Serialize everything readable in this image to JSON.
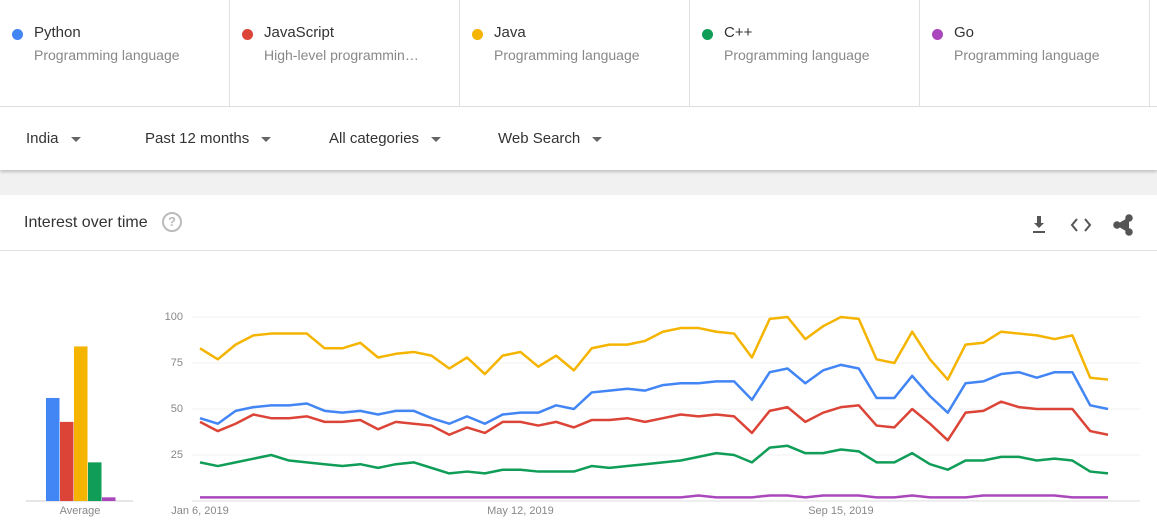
{
  "terms_panel": {
    "filters": [
      "India",
      "Past 12 months",
      "All categories",
      "Web Search"
    ]
  },
  "card": {
    "title": "Interest over time"
  },
  "chart_data": {
    "type": "line",
    "categories": [
      "Jan 6, 2019",
      null,
      null,
      null,
      null,
      null,
      null,
      null,
      null,
      null,
      null,
      null,
      null,
      null,
      null,
      null,
      null,
      null,
      "May 12, 2019",
      null,
      null,
      null,
      null,
      null,
      null,
      null,
      null,
      null,
      null,
      null,
      null,
      null,
      null,
      null,
      null,
      null,
      "Sep 15, 2019",
      null,
      null,
      null,
      null,
      null,
      null,
      null,
      null,
      null,
      null,
      null,
      null,
      null,
      null,
      null
    ],
    "average_label": "Average",
    "ylim": [
      0,
      100
    ],
    "yticks": [
      25,
      50,
      75,
      100
    ],
    "grid": true,
    "series": [
      {
        "name": "Python",
        "subtitle": "Programming language",
        "color": "#4285f4",
        "average": 56,
        "values": [
          45,
          42,
          49,
          51,
          52,
          52,
          53,
          49,
          48,
          49,
          47,
          49,
          49,
          45,
          42,
          46,
          42,
          47,
          48,
          48,
          52,
          50,
          59,
          60,
          61,
          60,
          63,
          64,
          64,
          65,
          65,
          55,
          70,
          72,
          64,
          71,
          74,
          72,
          56,
          56,
          68,
          57,
          48,
          64,
          65,
          69,
          70,
          67,
          70,
          70,
          52,
          50
        ]
      },
      {
        "name": "JavaScript",
        "subtitle": "High-level programmin…",
        "color": "#db4437",
        "average": 43,
        "values": [
          43,
          38,
          42,
          47,
          45,
          45,
          46,
          43,
          43,
          44,
          39,
          43,
          42,
          41,
          36,
          40,
          37,
          43,
          43,
          41,
          43,
          40,
          44,
          44,
          45,
          43,
          45,
          47,
          46,
          47,
          46,
          37,
          49,
          51,
          43,
          48,
          51,
          52,
          41,
          40,
          50,
          42,
          33,
          48,
          49,
          54,
          51,
          50,
          50,
          50,
          38,
          36
        ]
      },
      {
        "name": "Java",
        "subtitle": "Programming language",
        "color": "#f4b400",
        "average": 84,
        "values": [
          83,
          77,
          85,
          90,
          91,
          91,
          91,
          83,
          83,
          86,
          78,
          80,
          81,
          79,
          72,
          78,
          69,
          79,
          81,
          73,
          79,
          71,
          83,
          85,
          85,
          87,
          92,
          94,
          94,
          92,
          91,
          78,
          99,
          100,
          88,
          95,
          100,
          99,
          77,
          75,
          92,
          77,
          66,
          85,
          86,
          92,
          91,
          90,
          88,
          90,
          67,
          66
        ]
      },
      {
        "name": "C++",
        "subtitle": "Programming language",
        "color": "#0f9d58",
        "average": 21,
        "values": [
          21,
          19,
          21,
          23,
          25,
          22,
          21,
          20,
          19,
          20,
          18,
          20,
          21,
          18,
          15,
          16,
          15,
          17,
          17,
          16,
          16,
          16,
          19,
          18,
          19,
          20,
          21,
          22,
          24,
          26,
          25,
          21,
          29,
          30,
          26,
          26,
          28,
          27,
          21,
          21,
          26,
          20,
          17,
          22,
          22,
          24,
          24,
          22,
          23,
          22,
          16,
          15
        ]
      },
      {
        "name": "Go",
        "subtitle": "Programming language",
        "color": "#ab47bc",
        "average": 2,
        "values": [
          2,
          2,
          2,
          2,
          2,
          2,
          2,
          2,
          2,
          2,
          2,
          2,
          2,
          2,
          2,
          2,
          2,
          2,
          2,
          2,
          2,
          2,
          2,
          2,
          2,
          2,
          2,
          2,
          3,
          2,
          2,
          2,
          3,
          3,
          2,
          3,
          3,
          3,
          2,
          2,
          3,
          2,
          2,
          2,
          3,
          3,
          3,
          3,
          3,
          2,
          2,
          2
        ]
      }
    ]
  }
}
